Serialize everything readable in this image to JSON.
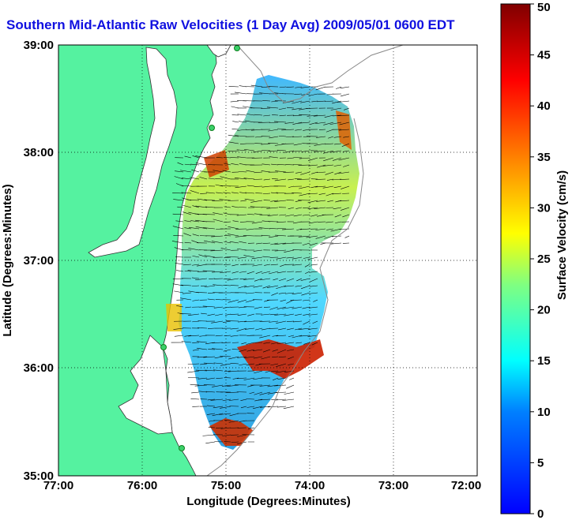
{
  "title": "Southern Mid-Atlantic Raw Velocities (1 Day Avg) 2009/05/01 0600 EDT",
  "map": {
    "xlabel": "Longitude (Degrees:Minutes)",
    "ylabel": "Latitude (Degrees:Minutes)",
    "x_ticks": [
      "77:00",
      "76:00",
      "75:00",
      "74:00",
      "73:00",
      "72:00"
    ],
    "y_ticks": [
      "39:00",
      "38:00",
      "37:00",
      "36:00",
      "35:00"
    ],
    "lon_range": [
      -77,
      -72
    ],
    "lat_range": [
      35,
      39
    ],
    "land_color": "#55f2a0",
    "grid": "dotted"
  },
  "colorbar": {
    "label": "Surface Velocity (cm/s)",
    "units": "cm/s",
    "ticks": [
      "0",
      "5",
      "10",
      "15",
      "20",
      "25",
      "30",
      "35",
      "40",
      "45",
      "50"
    ],
    "range": [
      0,
      50
    ],
    "colormap": "jet"
  }
}
